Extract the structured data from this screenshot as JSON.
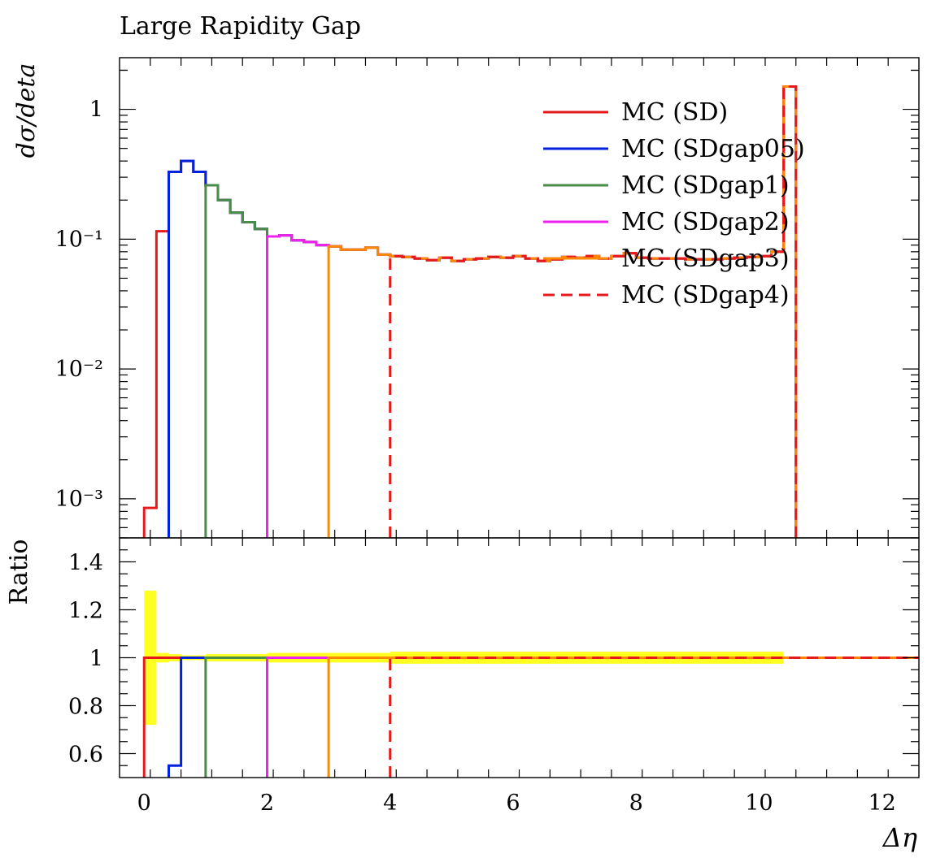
{
  "chart_data": {
    "type": "line",
    "title": "Large Rapidity Gap",
    "xlabel": "Δη",
    "ylabel": "dσ/deta",
    "ratio_ylabel": "Ratio",
    "xlim": [
      -0.4,
      12.6
    ],
    "ylim": [
      0.0005,
      2.5
    ],
    "yscale": "log",
    "ratio_ylim": [
      0.5,
      1.5
    ],
    "x_ticks": [
      0,
      2,
      4,
      6,
      8,
      10,
      12
    ],
    "x_tick_labels": [
      "0",
      "2",
      "4",
      "6",
      "8",
      "10",
      "12"
    ],
    "y_ticks": [
      0.001,
      0.01,
      0.1,
      1
    ],
    "y_tick_labels": [
      "10⁻³",
      "10⁻²",
      "10⁻¹",
      "1"
    ],
    "ratio_ticks": [
      0.6,
      0.8,
      1.0,
      1.2,
      1.4
    ],
    "ratio_tick_labels": [
      "0.6",
      "0.8",
      "1",
      "1.2",
      "1.4"
    ],
    "legend_position": "top-right",
    "bin_edges": [
      0,
      0.2,
      0.4,
      0.6,
      0.8,
      1.0,
      1.2,
      1.4,
      1.6,
      1.8,
      2.0,
      2.2,
      2.4,
      2.6,
      2.8,
      3.0,
      3.2,
      3.4,
      3.6,
      3.8,
      4.0,
      4.2,
      4.4,
      4.6,
      4.8,
      5.0,
      5.2,
      5.4,
      5.6,
      5.8,
      6.0,
      6.2,
      6.4,
      6.6,
      6.8,
      7.0,
      7.2,
      7.4,
      7.6,
      7.8,
      8.0,
      8.2,
      8.4,
      8.6,
      8.8,
      9.0,
      9.2,
      9.4,
      9.6,
      9.8,
      10.0,
      10.2,
      10.4,
      10.6
    ],
    "values": [
      0.00085,
      0.115,
      0.33,
      0.4,
      0.33,
      0.26,
      0.2,
      0.16,
      0.135,
      0.12,
      0.105,
      0.107,
      0.098,
      0.095,
      0.09,
      0.088,
      0.083,
      0.083,
      0.086,
      0.076,
      0.074,
      0.073,
      0.071,
      0.069,
      0.072,
      0.068,
      0.07,
      0.071,
      0.073,
      0.072,
      0.074,
      0.071,
      0.068,
      0.07,
      0.073,
      0.072,
      0.074,
      0.071,
      0.074,
      0.078,
      0.072,
      0.071,
      0.071,
      0.071,
      0.07,
      0.07,
      0.07,
      0.071,
      0.072,
      0.073,
      0.074,
      0.08,
      1.5
    ],
    "series": [
      {
        "name": "MC (SD)",
        "color": "#e41a1c",
        "dash": "solid",
        "x_start": 0.0,
        "ratio_start_value": 1.0
      },
      {
        "name": "MC (SDgap05)",
        "color": "#0022dd",
        "dash": "solid",
        "x_start": 0.4,
        "ratio_start_value": 0.55
      },
      {
        "name": "MC (SDgap1)",
        "color": "#4a8c4a",
        "dash": "solid",
        "x_start": 1.0,
        "ratio_start_value": 1.0
      },
      {
        "name": "MC (SDgap2)",
        "color": "#ee22ee",
        "dash": "solid",
        "x_start": 2.0,
        "ratio_start_value": 1.0
      },
      {
        "name": "MC (SDgap3)",
        "color": "#ff8800",
        "dash": "solid",
        "x_start": 3.0,
        "ratio_start_value": 1.0
      },
      {
        "name": "MC (SDgap4)",
        "color": "#e41a1c",
        "dash": "dashed",
        "x_start": 4.0,
        "ratio_start_value": 1.0
      }
    ],
    "uncertainty_band": {
      "color": "#ffff22",
      "x": [
        0.0,
        0.2,
        0.4,
        0.6,
        0.8,
        1.0,
        2.0,
        4.0,
        10.4
      ],
      "lo": [
        0.72,
        0.98,
        0.985,
        0.99,
        0.99,
        0.985,
        0.98,
        0.975,
        0.975
      ],
      "hi": [
        1.28,
        1.02,
        1.015,
        1.01,
        1.01,
        1.015,
        1.02,
        1.025,
        1.025
      ]
    }
  }
}
